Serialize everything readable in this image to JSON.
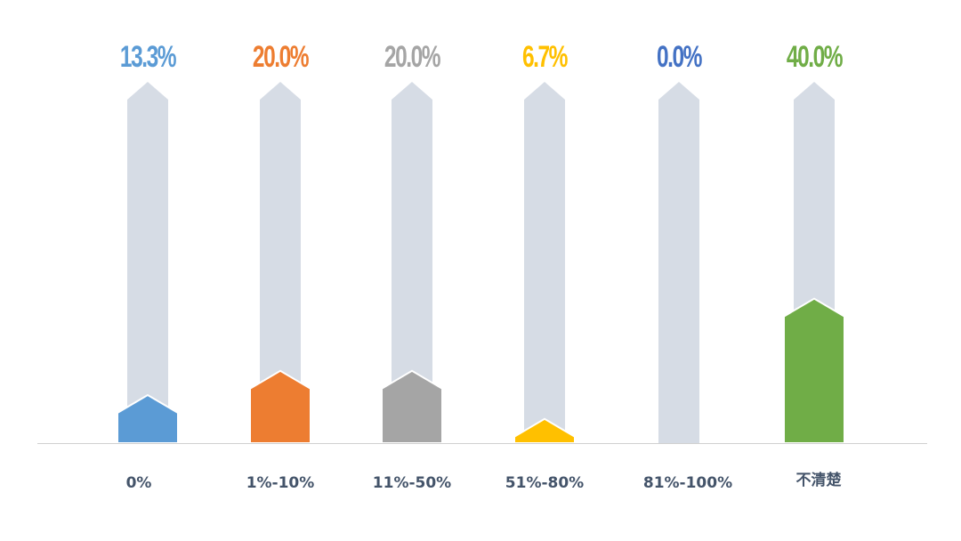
{
  "chart_data": {
    "type": "bar",
    "categories": [
      "0%",
      "1%-10%",
      "11%-50%",
      "51%-80%",
      "81%-100%",
      "不清楚"
    ],
    "values": [
      13.3,
      20.0,
      20.0,
      6.7,
      0.0,
      40.0
    ],
    "value_labels": [
      "13.3%",
      "20.0%",
      "20.0%",
      "6.7%",
      "0.0%",
      "40.0%"
    ],
    "colors": [
      "#5b9bd5",
      "#ed7d31",
      "#a5a5a5",
      "#ffc000",
      "#4472c4",
      "#70ad47"
    ],
    "track_color": "#d6dce5",
    "ylim": [
      0,
      100
    ],
    "grid": false,
    "legend": "none"
  }
}
